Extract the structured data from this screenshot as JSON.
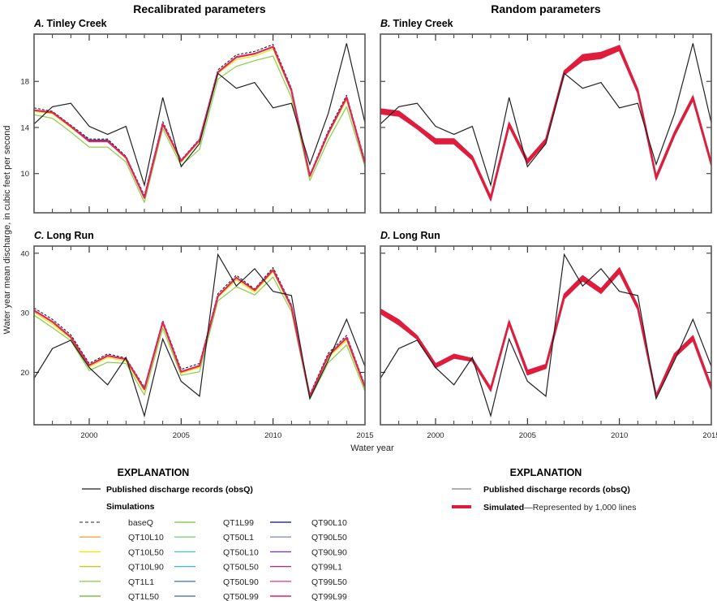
{
  "figure": {
    "column_titles": [
      "Recalibrated parameters",
      "Random parameters"
    ],
    "y_axis_label": "Water year mean discharge, in cubic feet per second",
    "x_axis_label": "Water year"
  },
  "legend_left": {
    "title": "EXPLANATION",
    "obs_label": "Published discharge records (obsQ)",
    "sim_heading": "Simulations",
    "items": [
      {
        "label": "baseQ",
        "color": "#231f20",
        "dash": true
      },
      {
        "label": "QT10L10",
        "color": "#f7a541"
      },
      {
        "label": "QT10L50",
        "color": "#f2e600"
      },
      {
        "label": "QT10L90",
        "color": "#c8c81e"
      },
      {
        "label": "QT1L1",
        "color": "#8fd14f"
      },
      {
        "label": "QT1L50",
        "color": "#7cc242"
      },
      {
        "label": "QT1L99",
        "color": "#86cf5a"
      },
      {
        "label": "QT50L1",
        "color": "#7fd180"
      },
      {
        "label": "QT50L10",
        "color": "#4fc3c8",
        "dash": true
      },
      {
        "label": "QT50L50",
        "color": "#3fbcd0"
      },
      {
        "label": "QT50L90",
        "color": "#4a7fc6",
        "dash": true
      },
      {
        "label": "QT50L99",
        "color": "#5b7fc0"
      },
      {
        "label": "QT90L10",
        "color": "#2e3a8c"
      },
      {
        "label": "QT90L50",
        "color": "#8a8fc0"
      },
      {
        "label": "QT90L90",
        "color": "#7b3f98"
      },
      {
        "label": "QT99L1",
        "color": "#a0348c"
      },
      {
        "label": "QT99L50",
        "color": "#e8458b"
      },
      {
        "label": "QT99L99",
        "color": "#e0245e",
        "dash": true
      }
    ]
  },
  "legend_right": {
    "title": "EXPLANATION",
    "obs_label": "Published discharge records (obsQ)",
    "sim_bold": "Simulated",
    "sim_rest": "—Represented by 1,000 lines",
    "sim_color": "#e31b3b"
  },
  "chart_data": [
    {
      "id": "A",
      "type": "line",
      "letter": "A.",
      "title": "Tinley Creek",
      "column": "Recalibrated parameters",
      "xlim": [
        1997,
        2015
      ],
      "ylim": [
        6.6,
        22.1
      ],
      "yticks": [
        10,
        14,
        18
      ],
      "xticks": [
        2000,
        2005,
        2010,
        2015
      ],
      "show_xtick_labels": false,
      "x": [
        1997,
        1998,
        1999,
        2000,
        2001,
        2002,
        2003,
        2004,
        2005,
        2006,
        2007,
        2008,
        2009,
        2010,
        2011,
        2012,
        2013,
        2014,
        2015
      ],
      "observed": [
        14.3,
        15.8,
        16.1,
        14.1,
        13.4,
        14.1,
        9.0,
        16.6,
        10.6,
        12.6,
        18.7,
        17.4,
        17.9,
        15.7,
        16.1,
        10.8,
        15.2,
        21.3,
        14.4
      ],
      "series": [
        {
          "name": "baseQ",
          "values": [
            15.7,
            15.4,
            14.2,
            13.0,
            13.0,
            11.5,
            8.1,
            14.5,
            11.2,
            13.0,
            19.0,
            20.3,
            20.6,
            21.2,
            17.4,
            9.9,
            13.7,
            16.8,
            11.1
          ]
        },
        {
          "name": "QT1L1",
          "values": [
            15.1,
            14.8,
            13.6,
            12.3,
            12.3,
            11.0,
            7.5,
            13.9,
            10.7,
            12.1,
            18.2,
            19.3,
            19.8,
            20.2,
            16.6,
            9.4,
            12.9,
            15.8,
            10.6
          ]
        },
        {
          "name": "QT10L50",
          "values": [
            15.4,
            15.2,
            14.0,
            12.8,
            12.8,
            11.3,
            7.9,
            14.2,
            11.0,
            12.8,
            18.7,
            19.9,
            20.2,
            20.8,
            17.1,
            9.7,
            13.4,
            16.4,
            10.9
          ]
        },
        {
          "name": "QT90L10",
          "values": [
            15.5,
            15.3,
            14.1,
            12.9,
            12.9,
            11.4,
            7.9,
            14.3,
            11.1,
            12.9,
            18.8,
            20.1,
            20.4,
            21.0,
            17.3,
            9.8,
            13.5,
            16.6,
            11.0
          ]
        },
        {
          "name": "QT99L99",
          "values": [
            15.5,
            15.3,
            14.1,
            12.8,
            12.8,
            11.4,
            7.9,
            14.3,
            11.1,
            12.9,
            18.8,
            20.1,
            20.4,
            21.0,
            17.2,
            9.8,
            13.5,
            16.6,
            10.9
          ]
        }
      ]
    },
    {
      "id": "B",
      "type": "line",
      "letter": "B.",
      "title": "Tinley Creek",
      "column": "Random parameters",
      "xlim": [
        1997,
        2015
      ],
      "ylim": [
        6.6,
        22.1
      ],
      "yticks": [
        10,
        14,
        18
      ],
      "xticks": [
        2000,
        2005,
        2010,
        2015
      ],
      "show_xtick_labels": false,
      "x": [
        1997,
        1998,
        1999,
        2000,
        2001,
        2002,
        2003,
        2004,
        2005,
        2006,
        2007,
        2008,
        2009,
        2010,
        2011,
        2012,
        2013,
        2014,
        2015
      ],
      "observed": [
        14.3,
        15.8,
        16.1,
        14.1,
        13.4,
        14.1,
        9.0,
        16.6,
        10.6,
        12.6,
        18.7,
        17.4,
        17.9,
        15.7,
        16.1,
        10.8,
        15.2,
        21.3,
        14.4
      ],
      "simulated_band": {
        "name": "Simulated (1,000 lines)",
        "upper": [
          15.6,
          15.4,
          14.2,
          13.0,
          13.0,
          11.5,
          8.0,
          14.4,
          11.2,
          13.0,
          18.9,
          20.3,
          20.5,
          21.1,
          17.3,
          9.8,
          13.6,
          16.7,
          11.0
        ],
        "lower": [
          15.2,
          15.0,
          13.9,
          12.6,
          12.6,
          11.2,
          7.7,
          14.1,
          10.9,
          12.7,
          18.6,
          19.8,
          20.0,
          20.7,
          17.0,
          9.5,
          13.3,
          16.4,
          10.7
        ]
      }
    },
    {
      "id": "C",
      "type": "line",
      "letter": "C.",
      "title": "Long Run",
      "column": "Recalibrated parameters",
      "xlim": [
        1997,
        2015
      ],
      "ylim": [
        11.2,
        41.2
      ],
      "yticks": [
        20,
        30,
        40
      ],
      "xticks": [
        2000,
        2005,
        2010,
        2015
      ],
      "show_xtick_labels": true,
      "x": [
        1997,
        1998,
        1999,
        2000,
        2001,
        2002,
        2003,
        2004,
        2005,
        2006,
        2007,
        2008,
        2009,
        2010,
        2011,
        2012,
        2013,
        2014,
        2015
      ],
      "observed": [
        19.0,
        24.0,
        25.4,
        20.8,
        17.9,
        22.5,
        12.7,
        25.6,
        18.5,
        16.0,
        39.8,
        34.5,
        37.4,
        33.6,
        32.9,
        15.6,
        22.0,
        28.9,
        21.0
      ],
      "series": [
        {
          "name": "baseQ",
          "values": [
            30.8,
            28.9,
            26.3,
            21.5,
            23.1,
            22.4,
            17.5,
            28.7,
            20.5,
            21.5,
            33.2,
            36.3,
            34.0,
            37.6,
            31.3,
            16.3,
            23.2,
            26.2,
            17.8
          ]
        },
        {
          "name": "QT1L1",
          "values": [
            29.6,
            27.5,
            25.3,
            20.3,
            21.7,
            21.5,
            16.2,
            27.4,
            19.5,
            20.1,
            32.0,
            34.4,
            33.0,
            36.0,
            30.2,
            15.5,
            21.6,
            24.6,
            16.8
          ]
        },
        {
          "name": "QT10L50",
          "values": [
            30.1,
            28.1,
            25.7,
            20.9,
            22.5,
            21.9,
            16.9,
            28.1,
            19.9,
            20.8,
            32.6,
            35.5,
            33.5,
            36.9,
            30.8,
            15.9,
            22.5,
            25.4,
            17.3
          ]
        },
        {
          "name": "QT90L10",
          "values": [
            30.4,
            28.5,
            25.9,
            21.2,
            22.8,
            22.2,
            17.2,
            28.4,
            20.1,
            21.1,
            32.8,
            35.9,
            33.8,
            37.2,
            31.0,
            16.0,
            22.8,
            25.8,
            17.5
          ]
        },
        {
          "name": "QT99L99",
          "values": [
            30.4,
            28.5,
            25.9,
            21.2,
            22.8,
            22.2,
            17.2,
            28.4,
            20.1,
            21.1,
            32.8,
            35.9,
            33.8,
            37.2,
            31.0,
            16.0,
            22.8,
            25.8,
            17.5
          ]
        }
      ]
    },
    {
      "id": "D",
      "type": "line",
      "letter": "D.",
      "title": "Long Run",
      "column": "Random parameters",
      "xlim": [
        1997,
        2015
      ],
      "ylim": [
        11.2,
        41.2
      ],
      "yticks": [
        20,
        30,
        40
      ],
      "xticks": [
        2000,
        2005,
        2010,
        2015
      ],
      "show_xtick_labels": true,
      "x": [
        1997,
        1998,
        1999,
        2000,
        2001,
        2002,
        2003,
        2004,
        2005,
        2006,
        2007,
        2008,
        2009,
        2010,
        2011,
        2012,
        2013,
        2014,
        2015
      ],
      "observed": [
        19.0,
        24.0,
        25.4,
        20.8,
        17.9,
        22.5,
        12.7,
        25.6,
        18.5,
        16.0,
        39.8,
        34.5,
        37.4,
        33.6,
        32.9,
        15.6,
        22.0,
        28.9,
        21.0
      ],
      "simulated_band": {
        "name": "Simulated (1,000 lines)",
        "upper": [
          30.6,
          28.8,
          26.1,
          21.4,
          23.0,
          22.3,
          17.4,
          28.6,
          20.3,
          21.3,
          33.1,
          36.2,
          34.0,
          37.5,
          31.2,
          16.2,
          23.1,
          26.1,
          17.7
        ],
        "lower": [
          29.9,
          28.0,
          25.6,
          20.8,
          22.4,
          21.9,
          16.9,
          28.1,
          19.6,
          20.7,
          32.4,
          35.4,
          33.3,
          36.7,
          30.6,
          15.8,
          22.5,
          25.4,
          17.1
        ]
      }
    }
  ]
}
